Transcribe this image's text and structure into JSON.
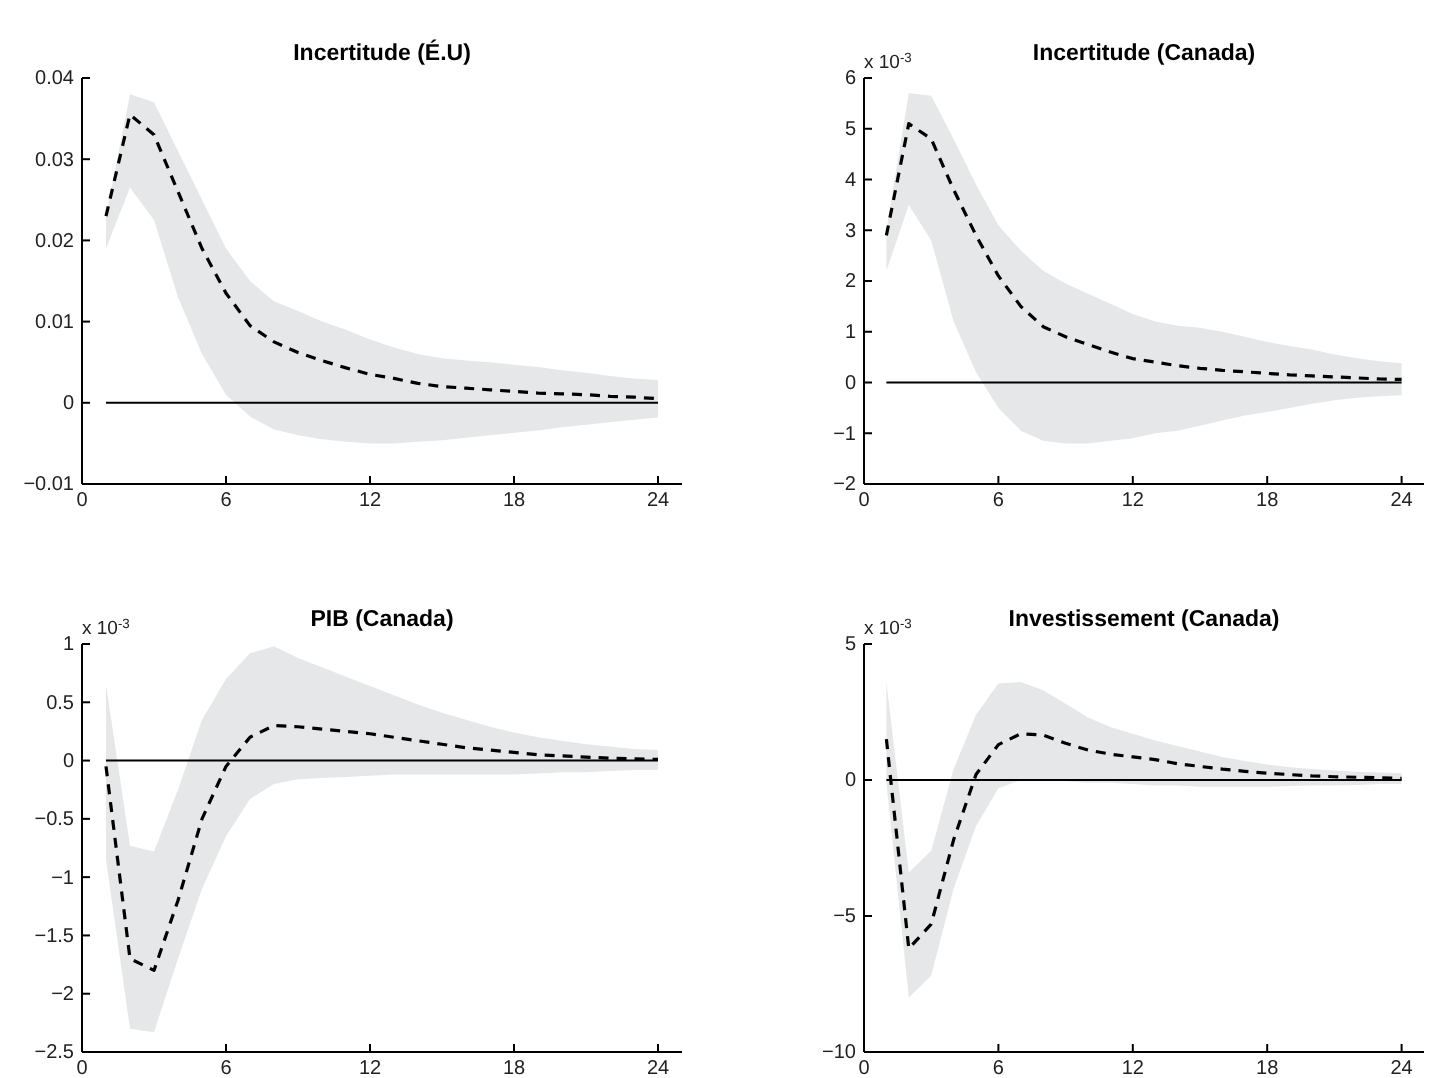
{
  "chart_data": [
    {
      "type": "line",
      "title": "Incertitude (É.U)",
      "xlim": [
        0,
        25
      ],
      "xticks": [
        0,
        6,
        12,
        18,
        24
      ],
      "ylim": [
        -0.01,
        0.04
      ],
      "yticks": [
        -0.01,
        0,
        0.01,
        0.02,
        0.03,
        0.04
      ],
      "line_style": "dashed",
      "ref_lines": [
        {
          "axis": "y",
          "value": 0,
          "color": "#000000"
        }
      ],
      "x": [
        1,
        2,
        3,
        4,
        5,
        6,
        7,
        8,
        9,
        10,
        11,
        12,
        13,
        14,
        15,
        16,
        17,
        18,
        19,
        20,
        21,
        22,
        23,
        24
      ],
      "series": [
        {
          "color": "#000000",
          "values": [
            0.023,
            0.0355,
            0.033,
            0.026,
            0.019,
            0.0135,
            0.0095,
            0.0075,
            0.0062,
            0.0052,
            0.0043,
            0.0035,
            0.003,
            0.0024,
            0.002,
            0.0018,
            0.0016,
            0.0014,
            0.0012,
            0.0011,
            0.001,
            0.0008,
            0.0007,
            0.0005
          ],
          "upper": [
            0.023,
            0.038,
            0.037,
            0.031,
            0.025,
            0.019,
            0.015,
            0.0125,
            0.0113,
            0.01,
            0.009,
            0.0078,
            0.0068,
            0.006,
            0.0055,
            0.0052,
            0.005,
            0.0047,
            0.0044,
            0.004,
            0.0037,
            0.0033,
            0.003,
            0.0028
          ],
          "lower": [
            0.019,
            0.0265,
            0.0225,
            0.013,
            0.006,
            0.001,
            -0.0017,
            -0.0033,
            -0.004,
            -0.0045,
            -0.0048,
            -0.005,
            -0.005,
            -0.0048,
            -0.0046,
            -0.0043,
            -0.004,
            -0.0037,
            -0.0034,
            -0.003,
            -0.0027,
            -0.0024,
            -0.0021,
            -0.0018
          ]
        }
      ]
    },
    {
      "type": "line",
      "title": "Incertitude (Canada)",
      "annotations": [
        "x 10$^{-3}$"
      ],
      "xlim": [
        0,
        25
      ],
      "xticks": [
        0,
        6,
        12,
        18,
        24
      ],
      "ylim": [
        -2,
        6
      ],
      "yticks": [
        -2,
        -1,
        0,
        1,
        2,
        3,
        4,
        5,
        6
      ],
      "line_style": "dashed",
      "ref_lines": [
        {
          "axis": "y",
          "value": 0,
          "color": "#000000"
        }
      ],
      "x": [
        1,
        2,
        3,
        4,
        5,
        6,
        7,
        8,
        9,
        10,
        11,
        12,
        13,
        14,
        15,
        16,
        17,
        18,
        19,
        20,
        21,
        22,
        23,
        24
      ],
      "series": [
        {
          "color": "#000000",
          "values": [
            2.9,
            5.1,
            4.8,
            3.8,
            2.9,
            2.1,
            1.5,
            1.1,
            0.9,
            0.75,
            0.6,
            0.47,
            0.4,
            0.33,
            0.28,
            0.24,
            0.21,
            0.18,
            0.15,
            0.13,
            0.11,
            0.09,
            0.07,
            0.06
          ],
          "upper": [
            3.0,
            5.7,
            5.65,
            4.8,
            3.9,
            3.1,
            2.6,
            2.2,
            1.95,
            1.75,
            1.55,
            1.35,
            1.2,
            1.12,
            1.08,
            1.0,
            0.9,
            0.8,
            0.72,
            0.65,
            0.55,
            0.48,
            0.42,
            0.38
          ],
          "lower": [
            2.2,
            3.5,
            2.8,
            1.2,
            0.2,
            -0.5,
            -0.95,
            -1.15,
            -1.2,
            -1.2,
            -1.15,
            -1.1,
            -1.0,
            -0.95,
            -0.85,
            -0.75,
            -0.65,
            -0.58,
            -0.5,
            -0.42,
            -0.35,
            -0.3,
            -0.27,
            -0.25
          ]
        }
      ]
    },
    {
      "type": "line",
      "title": "PIB (Canada)",
      "annotations": [
        "x 10$^{-3}$"
      ],
      "xlim": [
        0,
        25
      ],
      "xticks": [
        0,
        6,
        12,
        18,
        24
      ],
      "ylim": [
        -2.5,
        1
      ],
      "yticks": [
        -2.5,
        -2,
        -1.5,
        -1,
        -0.5,
        0,
        0.5,
        1
      ],
      "line_style": "dashed",
      "ref_lines": [
        {
          "axis": "y",
          "value": 0,
          "color": "#000000"
        }
      ],
      "x": [
        1,
        2,
        3,
        4,
        5,
        6,
        7,
        8,
        9,
        10,
        11,
        12,
        13,
        14,
        15,
        16,
        17,
        18,
        19,
        20,
        21,
        22,
        23,
        24
      ],
      "series": [
        {
          "color": "#000000",
          "values": [
            -0.05,
            -1.7,
            -1.8,
            -1.2,
            -0.5,
            -0.05,
            0.2,
            0.3,
            0.29,
            0.27,
            0.25,
            0.23,
            0.2,
            0.17,
            0.14,
            0.11,
            0.09,
            0.07,
            0.05,
            0.04,
            0.03,
            0.02,
            0.015,
            0.01
          ],
          "upper": [
            0.65,
            -0.73,
            -0.78,
            -0.25,
            0.35,
            0.7,
            0.92,
            0.98,
            0.88,
            0.8,
            0.72,
            0.64,
            0.56,
            0.48,
            0.41,
            0.35,
            0.29,
            0.24,
            0.2,
            0.17,
            0.14,
            0.12,
            0.1,
            0.09
          ],
          "lower": [
            -0.85,
            -2.3,
            -2.33,
            -1.7,
            -1.1,
            -0.65,
            -0.33,
            -0.2,
            -0.16,
            -0.15,
            -0.14,
            -0.13,
            -0.12,
            -0.12,
            -0.12,
            -0.12,
            -0.12,
            -0.12,
            -0.11,
            -0.1,
            -0.1,
            -0.09,
            -0.08,
            -0.08
          ]
        }
      ]
    },
    {
      "type": "line",
      "title": "Investissement (Canada)",
      "annotations": [
        "x 10$^{-3}$"
      ],
      "xlim": [
        0,
        25
      ],
      "xticks": [
        0,
        6,
        12,
        18,
        24
      ],
      "ylim": [
        -10,
        5
      ],
      "yticks": [
        -10,
        -5,
        0,
        5
      ],
      "line_style": "dashed",
      "ref_lines": [
        {
          "axis": "y",
          "value": 0,
          "color": "#000000"
        }
      ],
      "x": [
        1,
        2,
        3,
        4,
        5,
        6,
        7,
        8,
        9,
        10,
        11,
        12,
        13,
        14,
        15,
        16,
        17,
        18,
        19,
        20,
        21,
        22,
        23,
        24
      ],
      "series": [
        {
          "color": "#000000",
          "values": [
            1.5,
            -6.2,
            -5.3,
            -2.2,
            0.2,
            1.3,
            1.7,
            1.65,
            1.35,
            1.1,
            0.95,
            0.85,
            0.75,
            0.6,
            0.5,
            0.4,
            0.32,
            0.25,
            0.2,
            0.15,
            0.12,
            0.1,
            0.08,
            0.06
          ],
          "upper": [
            3.6,
            -3.4,
            -2.6,
            0.4,
            2.4,
            3.55,
            3.6,
            3.3,
            2.8,
            2.3,
            1.95,
            1.7,
            1.45,
            1.25,
            1.05,
            0.85,
            0.7,
            0.57,
            0.47,
            0.4,
            0.35,
            0.3,
            0.28,
            0.25
          ],
          "lower": [
            -0.1,
            -8.0,
            -7.2,
            -4.0,
            -1.7,
            -0.3,
            0.0,
            0.0,
            -0.05,
            -0.1,
            -0.1,
            -0.15,
            -0.2,
            -0.2,
            -0.25,
            -0.25,
            -0.25,
            -0.25,
            -0.22,
            -0.2,
            -0.2,
            -0.18,
            -0.15,
            -0.15
          ]
        }
      ]
    }
  ]
}
